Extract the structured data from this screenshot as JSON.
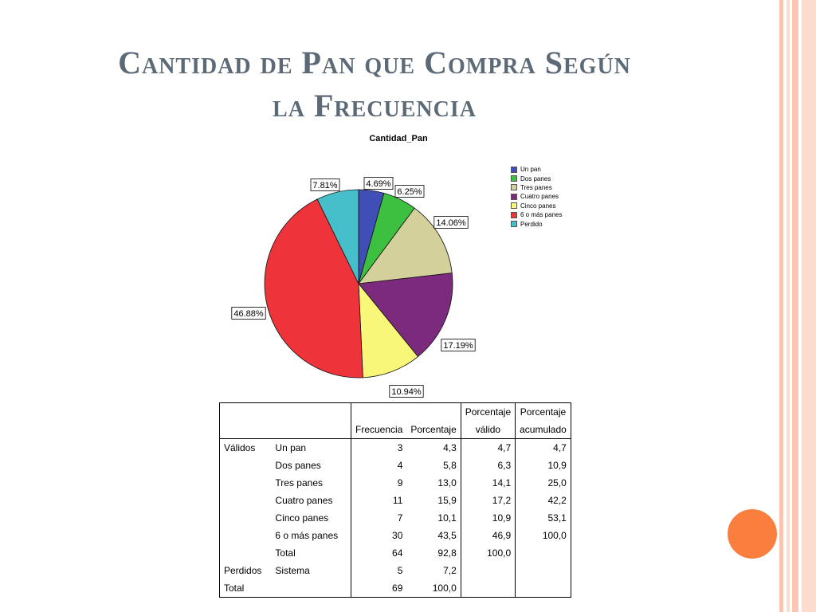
{
  "slide": {
    "title_line1": "Cantidad de Pan que Compra Según",
    "title_line2": "la Frecuencia",
    "accent_color": "#fa7f3e",
    "stripe_colors": [
      "#f9c6b3",
      "#fbdccf"
    ]
  },
  "chart_data": {
    "type": "pie",
    "title": "Cantidad_Pan",
    "slices": [
      {
        "name": "Un pan",
        "value": 4.69,
        "label": "4.69%",
        "color": "#3f4fb5"
      },
      {
        "name": "Dos panes",
        "value": 6.25,
        "label": "6.25%",
        "color": "#3dbf3f"
      },
      {
        "name": "Tres panes",
        "value": 14.06,
        "label": "14.06%",
        "color": "#d4d09b"
      },
      {
        "name": "Cuatro panes",
        "value": 17.19,
        "label": "17.19%",
        "color": "#7b2a7d"
      },
      {
        "name": "Cinco panes",
        "value": 10.94,
        "label": "10.94%",
        "color": "#f9f77a"
      },
      {
        "name": "6 o más panes",
        "value": 46.88,
        "label": "46.88%",
        "color": "#ee333b"
      },
      {
        "name": "Perdido",
        "value": 7.81,
        "label": "7.81%",
        "color": "#47bfcb"
      }
    ],
    "legend": [
      {
        "label": "Un pan",
        "color": "#3f4fb5"
      },
      {
        "label": "Dos panes",
        "color": "#3dbf3f"
      },
      {
        "label": "Tres panes",
        "color": "#d4d09b"
      },
      {
        "label": "Cuatro panes",
        "color": "#7b2a7d"
      },
      {
        "label": "Cinco panes",
        "color": "#f9f77a"
      },
      {
        "label": "6 o más panes",
        "color": "#ee333b"
      },
      {
        "label": "Perdido",
        "color": "#47bfcb"
      }
    ],
    "legend_position": "right"
  },
  "table": {
    "headers": {
      "frecuencia": "Frecuencia",
      "porcentaje": "Porcentaje",
      "valido_1": "Porcentaje",
      "valido_2": "válido",
      "acum_1": "Porcentaje",
      "acum_2": "acumulado"
    },
    "rows": [
      {
        "group": "Válidos",
        "label": "Un pan",
        "frecuencia": "3",
        "porcentaje": "4,3",
        "valido": "4,7",
        "acumulado": "4,7"
      },
      {
        "group": "",
        "label": "Dos panes",
        "frecuencia": "4",
        "porcentaje": "5,8",
        "valido": "6,3",
        "acumulado": "10,9"
      },
      {
        "group": "",
        "label": "Tres panes",
        "frecuencia": "9",
        "porcentaje": "13,0",
        "valido": "14,1",
        "acumulado": "25,0"
      },
      {
        "group": "",
        "label": "Cuatro panes",
        "frecuencia": "11",
        "porcentaje": "15,9",
        "valido": "17,2",
        "acumulado": "42,2"
      },
      {
        "group": "",
        "label": "Cinco panes",
        "frecuencia": "7",
        "porcentaje": "10,1",
        "valido": "10,9",
        "acumulado": "53,1"
      },
      {
        "group": "",
        "label": "6 o más panes",
        "frecuencia": "30",
        "porcentaje": "43,5",
        "valido": "46,9",
        "acumulado": "100,0"
      },
      {
        "group": "",
        "label": "Total",
        "frecuencia": "64",
        "porcentaje": "92,8",
        "valido": "100,0",
        "acumulado": ""
      },
      {
        "group": "Perdidos",
        "label": "Sistema",
        "frecuencia": "5",
        "porcentaje": "7,2",
        "valido": "",
        "acumulado": ""
      },
      {
        "group": "Total",
        "label": "",
        "frecuencia": "69",
        "porcentaje": "100,0",
        "valido": "",
        "acumulado": ""
      }
    ]
  }
}
